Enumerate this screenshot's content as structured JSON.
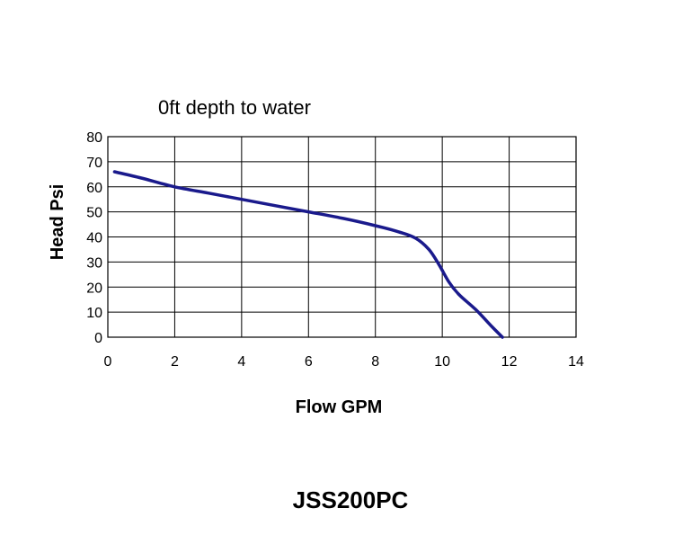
{
  "chart_data": {
    "type": "line",
    "title": "0ft depth to water",
    "xlabel": "Flow GPM",
    "ylabel": "Head Psi",
    "xlim": [
      0,
      14
    ],
    "ylim": [
      0,
      80
    ],
    "x_ticks": [
      0,
      2,
      4,
      6,
      8,
      10,
      12,
      14
    ],
    "y_ticks": [
      0,
      10,
      20,
      30,
      40,
      50,
      60,
      70,
      80
    ],
    "grid": true,
    "legend": "none",
    "series": [
      {
        "color": "#1a1a8c",
        "x": [
          0.2,
          1,
          2,
          3,
          4,
          5,
          6,
          7,
          8,
          8.7,
          9.2,
          9.6,
          9.9,
          10.2,
          10.5,
          11,
          11.5,
          11.8
        ],
        "y": [
          66,
          63.5,
          60,
          57.5,
          55,
          52.5,
          50,
          47.5,
          44.5,
          42,
          39.5,
          35,
          29,
          22,
          17,
          11,
          4,
          0
        ]
      }
    ]
  },
  "caption": "JSS200PC"
}
